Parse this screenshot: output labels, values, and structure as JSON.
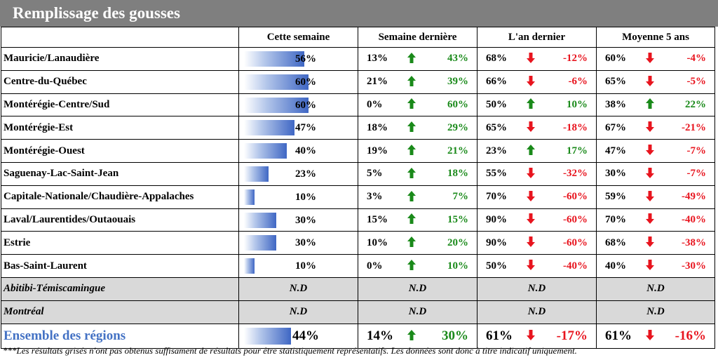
{
  "title": "Remplissage des gousses",
  "headers": [
    "",
    "Cette semaine",
    "Semaine dernière",
    "L'an dernier",
    "Moyenne 5 ans"
  ],
  "colors": {
    "up": "#1a8a1a",
    "down": "#e8141e",
    "header_bg": "#7f7f7f",
    "gray_row": "#d9d9d9",
    "accent": "#4472c4"
  },
  "rows": [
    {
      "region": "Mauricie/Lanaudière",
      "cette": "56%",
      "pct": 56,
      "sd": {
        "v": "13%",
        "dir": "up",
        "d": "43%"
      },
      "ad": {
        "v": "68%",
        "dir": "down",
        "d": "-12%"
      },
      "m5": {
        "v": "60%",
        "dir": "down",
        "d": "-4%"
      }
    },
    {
      "region": "Centre-du-Québec",
      "cette": "60%",
      "pct": 60,
      "sd": {
        "v": "21%",
        "dir": "up",
        "d": "39%"
      },
      "ad": {
        "v": "66%",
        "dir": "down",
        "d": "-6%"
      },
      "m5": {
        "v": "65%",
        "dir": "down",
        "d": "-5%"
      }
    },
    {
      "region": "Montérégie-Centre/Sud",
      "cette": "60%",
      "pct": 60,
      "sd": {
        "v": "0%",
        "dir": "up",
        "d": "60%"
      },
      "ad": {
        "v": "50%",
        "dir": "up",
        "d": "10%"
      },
      "m5": {
        "v": "38%",
        "dir": "up",
        "d": "22%"
      }
    },
    {
      "region": "Montérégie-Est",
      "cette": "47%",
      "pct": 47,
      "sd": {
        "v": "18%",
        "dir": "up",
        "d": "29%"
      },
      "ad": {
        "v": "65%",
        "dir": "down",
        "d": "-18%"
      },
      "m5": {
        "v": "67%",
        "dir": "down",
        "d": "-21%"
      }
    },
    {
      "region": "Montérégie-Ouest",
      "cette": "40%",
      "pct": 40,
      "sd": {
        "v": "19%",
        "dir": "up",
        "d": "21%"
      },
      "ad": {
        "v": "23%",
        "dir": "up",
        "d": "17%"
      },
      "m5": {
        "v": "47%",
        "dir": "down",
        "d": "-7%"
      }
    },
    {
      "region": "Saguenay-Lac-Saint-Jean",
      "cette": "23%",
      "pct": 23,
      "sd": {
        "v": "5%",
        "dir": "up",
        "d": "18%"
      },
      "ad": {
        "v": "55%",
        "dir": "down",
        "d": "-32%"
      },
      "m5": {
        "v": "30%",
        "dir": "down",
        "d": "-7%"
      }
    },
    {
      "region": "Capitale-Nationale/Chaudière-Appalaches",
      "cette": "10%",
      "pct": 10,
      "sd": {
        "v": "3%",
        "dir": "up",
        "d": "7%"
      },
      "ad": {
        "v": "70%",
        "dir": "down",
        "d": "-60%"
      },
      "m5": {
        "v": "59%",
        "dir": "down",
        "d": "-49%"
      }
    },
    {
      "region": "Laval/Laurentides/Outaouais",
      "cette": "30%",
      "pct": 30,
      "sd": {
        "v": "15%",
        "dir": "up",
        "d": "15%"
      },
      "ad": {
        "v": "90%",
        "dir": "down",
        "d": "-60%"
      },
      "m5": {
        "v": "70%",
        "dir": "down",
        "d": "-40%"
      }
    },
    {
      "region": "Estrie",
      "cette": "30%",
      "pct": 30,
      "sd": {
        "v": "10%",
        "dir": "up",
        "d": "20%"
      },
      "ad": {
        "v": "90%",
        "dir": "down",
        "d": "-60%"
      },
      "m5": {
        "v": "68%",
        "dir": "down",
        "d": "-38%"
      }
    },
    {
      "region": "Bas-Saint-Laurent",
      "cette": "10%",
      "pct": 10,
      "sd": {
        "v": "0%",
        "dir": "up",
        "d": "10%"
      },
      "ad": {
        "v": "50%",
        "dir": "down",
        "d": "-40%"
      },
      "m5": {
        "v": "40%",
        "dir": "down",
        "d": "-30%"
      }
    }
  ],
  "gray_rows": [
    {
      "region": "Abitibi-Témiscamingue",
      "nd": "N.D"
    },
    {
      "region": "Montréal",
      "nd": "N.D"
    }
  ],
  "total": {
    "region": "Ensemble des régions",
    "cette": "44%",
    "pct": 44,
    "sd": {
      "v": "14%",
      "dir": "up",
      "d": "30%"
    },
    "ad": {
      "v": "61%",
      "dir": "down",
      "d": "-17%"
    },
    "m5": {
      "v": "61%",
      "dir": "down",
      "d": "-16%"
    }
  },
  "footnote": "***Les résultats grisés n'ont pas obtenus suffisament de résultats pour être statistiquement représentatifs. Les données sont donc à titre indicatif uniquement."
}
